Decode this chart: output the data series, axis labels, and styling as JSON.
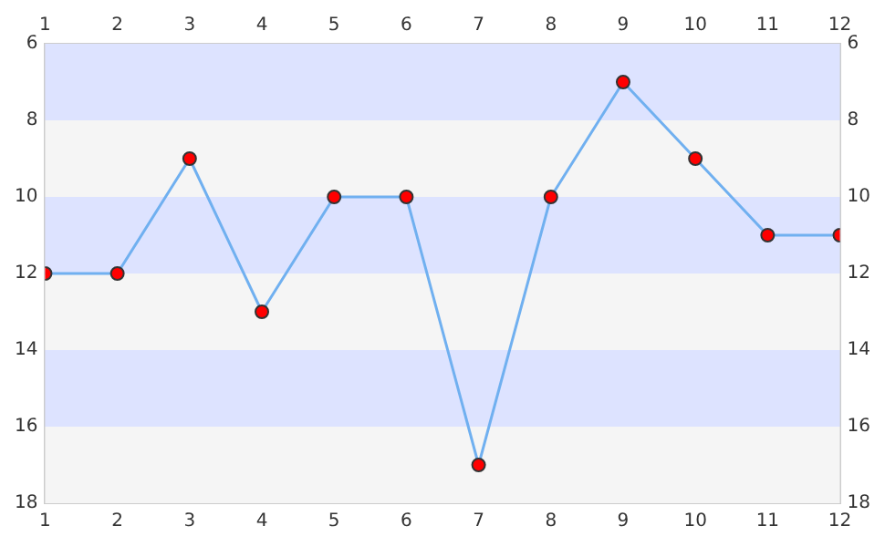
{
  "chart_data": {
    "type": "line",
    "x": [
      1,
      2,
      3,
      4,
      5,
      6,
      7,
      8,
      9,
      10,
      11,
      12
    ],
    "series": [
      {
        "color": "#70b0f0",
        "colors": [
          "#ff0000",
          "#ff0000",
          "#ff0000",
          "#ff0000",
          "#ff0000",
          "#ff0000",
          "#ff0000",
          "#ff0000",
          "#ff0000",
          "#ff0000",
          "#ff0000",
          "#ff0000"
        ],
        "values": [
          12,
          12,
          9,
          13,
          10,
          10,
          17,
          10,
          7,
          9,
          11,
          11
        ]
      }
    ],
    "xlim": [
      1,
      12
    ],
    "xticks": [
      1,
      2,
      3,
      4,
      5,
      6,
      7,
      8,
      9,
      10,
      11,
      12
    ],
    "x2lim": [
      1,
      12
    ],
    "x2ticks": [
      1,
      2,
      3,
      4,
      5,
      6,
      7,
      8,
      9,
      10,
      11,
      12
    ],
    "ylim": [
      18,
      6
    ],
    "yticks": [
      6,
      8,
      10,
      12,
      14,
      16,
      18
    ],
    "y2lim": [
      18,
      6
    ],
    "y2ticks": [
      6,
      8,
      10,
      12,
      14,
      16,
      18
    ],
    "bands": [
      {
        "axis": "y",
        "from": 6,
        "to": 8,
        "color": "#dde3ff"
      },
      {
        "axis": "y",
        "from": 8,
        "to": 10,
        "color": "#f5f5f5"
      },
      {
        "axis": "y",
        "from": 10,
        "to": 12,
        "color": "#dde3ff"
      },
      {
        "axis": "y",
        "from": 12,
        "to": 14,
        "color": "#f5f5f5"
      },
      {
        "axis": "y",
        "from": 14,
        "to": 16,
        "color": "#dde3ff"
      },
      {
        "axis": "y",
        "from": 16,
        "to": 18,
        "color": "#f5f5f5"
      }
    ],
    "legend": false,
    "marker": "circle",
    "line_style": "solid"
  }
}
